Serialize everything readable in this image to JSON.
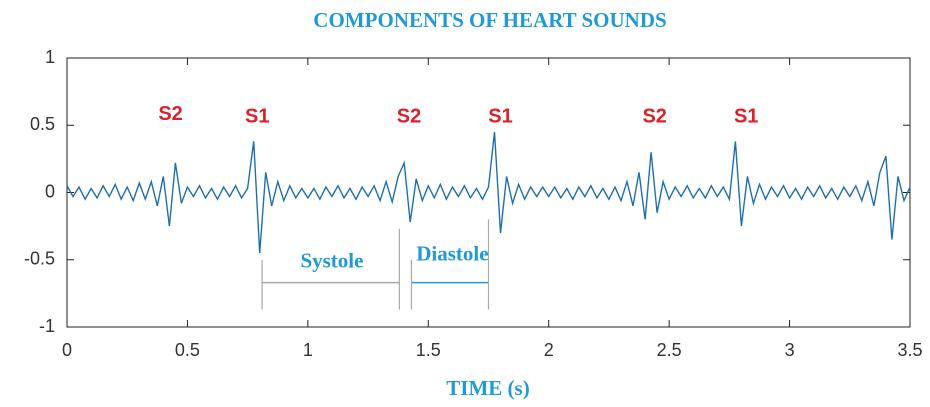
{
  "chart_data": {
    "type": "line",
    "title": "COMPONENTS OF HEART SOUNDS",
    "xlabel": "TIME (s)",
    "x": [
      0,
      0.025,
      0.05,
      0.075,
      0.1,
      0.125,
      0.15,
      0.175,
      0.2,
      0.225,
      0.25,
      0.275,
      0.3,
      0.325,
      0.35,
      0.375,
      0.4,
      0.425,
      0.45,
      0.475,
      0.5,
      0.525,
      0.55,
      0.575,
      0.6,
      0.625,
      0.65,
      0.675,
      0.7,
      0.725,
      0.75,
      0.775,
      0.8,
      0.825,
      0.85,
      0.875,
      0.9,
      0.925,
      0.95,
      0.975,
      1,
      1.025,
      1.05,
      1.075,
      1.1,
      1.125,
      1.15,
      1.175,
      1.2,
      1.225,
      1.25,
      1.275,
      1.3,
      1.325,
      1.35,
      1.375,
      1.4,
      1.425,
      1.45,
      1.475,
      1.5,
      1.525,
      1.55,
      1.575,
      1.6,
      1.625,
      1.65,
      1.675,
      1.7,
      1.725,
      1.75,
      1.775,
      1.8,
      1.825,
      1.85,
      1.875,
      1.9,
      1.925,
      1.95,
      1.975,
      2,
      2.025,
      2.05,
      2.075,
      2.1,
      2.125,
      2.15,
      2.175,
      2.2,
      2.225,
      2.25,
      2.275,
      2.3,
      2.325,
      2.35,
      2.375,
      2.4,
      2.425,
      2.45,
      2.475,
      2.5,
      2.525,
      2.55,
      2.575,
      2.6,
      2.625,
      2.65,
      2.675,
      2.7,
      2.725,
      2.75,
      2.775,
      2.8,
      2.825,
      2.85,
      2.875,
      2.9,
      2.925,
      2.95,
      2.975,
      3,
      3.025,
      3.05,
      3.075,
      3.1,
      3.125,
      3.15,
      3.175,
      3.2,
      3.225,
      3.25,
      3.275,
      3.3,
      3.325,
      3.35,
      3.375,
      3.4,
      3.425,
      3.45,
      3.475,
      3.5
    ],
    "series": [
      {
        "color": "#1f6fae",
        "values": [
          0.05,
          -0.03,
          0.04,
          -0.05,
          0.03,
          -0.04,
          0.05,
          -0.03,
          0.06,
          -0.05,
          0.04,
          -0.06,
          0.07,
          -0.05,
          0.08,
          -0.1,
          0.12,
          -0.25,
          0.22,
          -0.08,
          0.04,
          -0.03,
          0.05,
          -0.04,
          0.03,
          -0.05,
          0.04,
          -0.03,
          0.05,
          -0.04,
          0.03,
          0.38,
          -0.45,
          0.15,
          -0.1,
          0.08,
          -0.06,
          0.05,
          -0.04,
          0.03,
          -0.04,
          0.03,
          -0.05,
          0.04,
          -0.03,
          0.05,
          -0.04,
          0.03,
          -0.05,
          0.04,
          -0.03,
          0.05,
          -0.06,
          0.08,
          -0.07,
          0.12,
          0.22,
          -0.22,
          0.1,
          -0.06,
          0.05,
          -0.04,
          0.06,
          -0.05,
          0.04,
          -0.03,
          0.05,
          -0.04,
          0.03,
          -0.05,
          0.04,
          0.45,
          -0.3,
          0.12,
          -0.08,
          0.06,
          -0.05,
          0.04,
          -0.03,
          0.04,
          -0.03,
          0.04,
          -0.04,
          0.03,
          -0.05,
          0.04,
          -0.03,
          0.05,
          -0.04,
          0.03,
          -0.05,
          0.04,
          -0.06,
          0.08,
          -0.1,
          0.15,
          -0.2,
          0.3,
          -0.15,
          0.08,
          -0.05,
          0.04,
          -0.03,
          0.05,
          -0.04,
          0.03,
          -0.04,
          0.05,
          -0.03,
          0.04,
          -0.05,
          0.38,
          -0.25,
          0.12,
          -0.08,
          0.06,
          -0.05,
          0.04,
          -0.03,
          0.05,
          -0.04,
          0.03,
          -0.05,
          0.04,
          -0.03,
          0.05,
          -0.04,
          0.03,
          -0.05,
          0.04,
          -0.03,
          0.05,
          -0.06,
          0.08,
          -0.1,
          0.15,
          0.27,
          -0.35,
          0.12,
          -0.06,
          0.04
        ]
      }
    ],
    "xlim": [
      0,
      3.5
    ],
    "ylim": [
      -1,
      1
    ],
    "xticks": [
      0,
      0.5,
      1,
      1.5,
      2,
      2.5,
      3,
      3.5
    ],
    "yticks": [
      -1,
      -0.5,
      0,
      0.5,
      1
    ],
    "annotations": [
      {
        "text": "S2",
        "x": 0.43,
        "y": 0.58,
        "color": "#d9232a"
      },
      {
        "text": "S1",
        "x": 0.79,
        "y": 0.56,
        "color": "#d9232a"
      },
      {
        "text": "S2",
        "x": 1.42,
        "y": 0.56,
        "color": "#d9232a"
      },
      {
        "text": "S1",
        "x": 1.8,
        "y": 0.56,
        "color": "#d9232a"
      },
      {
        "text": "S2",
        "x": 2.44,
        "y": 0.56,
        "color": "#d9232a"
      },
      {
        "text": "S1",
        "x": 2.82,
        "y": 0.56,
        "color": "#d9232a"
      },
      {
        "text": "Systole",
        "x": 1.1,
        "y": -0.52,
        "color": "#1f9ad6"
      },
      {
        "text": "Diastole",
        "x": 1.6,
        "y": -0.47,
        "color": "#1f9ad6"
      }
    ],
    "brackets": [
      {
        "x0": 0.81,
        "x1": 1.38,
        "y": -0.67,
        "top0": -0.5,
        "top1": -0.27,
        "bottom": -0.87,
        "color": "#aaaaaa"
      },
      {
        "x0": 1.43,
        "x1": 1.75,
        "y": -0.67,
        "top0": -0.5,
        "top1": -0.2,
        "bottom": -0.87,
        "color": "#1f9ad6"
      }
    ]
  }
}
